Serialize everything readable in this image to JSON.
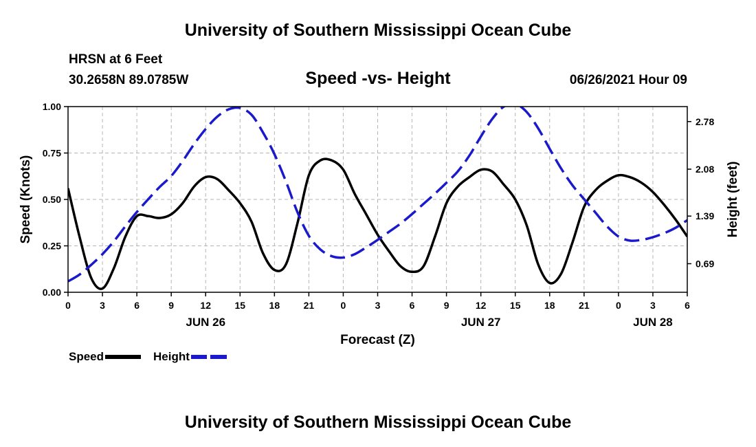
{
  "header": {
    "title": "University of Southern Mississippi Ocean Cube",
    "station": "HRSN at 6 Feet",
    "coords": "30.2658N  89.0785W",
    "chart_title": "Speed -vs- Height",
    "timestamp": "06/26/2021 Hour 09"
  },
  "footer": {
    "title": "University of Southern Mississippi Ocean Cube"
  },
  "legend": {
    "speed_label": "Speed",
    "height_label": "Height"
  },
  "colors": {
    "speed": "#000000",
    "height": "#1a1acc",
    "grid": "#b4b4b4"
  },
  "chart_data": {
    "type": "line",
    "title": "Speed -vs- Height",
    "xlabel": "Forecast (Z)",
    "ylabel": "Speed (Knots)",
    "ylabel_right": "Height (feet)",
    "xlim": [
      0,
      54
    ],
    "ylim": [
      0,
      1
    ],
    "ylim_right": [
      0.27,
      3.0
    ],
    "x_ticks": [
      0,
      3,
      6,
      9,
      12,
      15,
      18,
      21,
      24,
      27,
      30,
      33,
      36,
      39,
      42,
      45,
      48,
      51,
      54
    ],
    "x_tick_labels": [
      "0",
      "3",
      "6",
      "9",
      "12",
      "15",
      "18",
      "21",
      "0",
      "3",
      "6",
      "9",
      "12",
      "15",
      "18",
      "21",
      "0",
      "3",
      "6"
    ],
    "date_labels": [
      {
        "x": 12,
        "label": "JUN 26"
      },
      {
        "x": 36,
        "label": "JUN 27"
      },
      {
        "x": 51,
        "label": "JUN 28"
      }
    ],
    "y_ticks": [
      0,
      0.25,
      0.5,
      0.75,
      1.0
    ],
    "y_tick_labels": [
      "0.00",
      "0.25",
      "0.50",
      "0.75",
      "1.00"
    ],
    "y_right_ticks": [
      0.69,
      1.39,
      2.08,
      2.78
    ],
    "y_right_tick_labels": [
      "0.69",
      "1.39",
      "2.08",
      "2.78"
    ],
    "grid": true,
    "series": [
      {
        "name": "Speed",
        "axis": "left",
        "style": "solid",
        "x": [
          0,
          1,
          2,
          3,
          4,
          5,
          6,
          7,
          8,
          9,
          10,
          11,
          12,
          13,
          14,
          15,
          16,
          17,
          18,
          19,
          20,
          21,
          22,
          23,
          24,
          25,
          26,
          27,
          28,
          29,
          30,
          31,
          32,
          33,
          34,
          35,
          36,
          37,
          38,
          39,
          40,
          41,
          42,
          43,
          44,
          45,
          46,
          47,
          48,
          49,
          50,
          51,
          52,
          53,
          54
        ],
        "values": [
          0.56,
          0.3,
          0.08,
          0.02,
          0.13,
          0.3,
          0.41,
          0.41,
          0.4,
          0.42,
          0.48,
          0.57,
          0.62,
          0.61,
          0.55,
          0.48,
          0.38,
          0.21,
          0.12,
          0.15,
          0.37,
          0.63,
          0.71,
          0.71,
          0.66,
          0.53,
          0.42,
          0.31,
          0.22,
          0.14,
          0.11,
          0.14,
          0.3,
          0.48,
          0.57,
          0.62,
          0.66,
          0.65,
          0.58,
          0.5,
          0.36,
          0.15,
          0.05,
          0.1,
          0.27,
          0.46,
          0.55,
          0.6,
          0.63,
          0.62,
          0.59,
          0.54,
          0.47,
          0.39,
          0.3
        ]
      },
      {
        "name": "Height",
        "axis": "right",
        "style": "dashed",
        "x": [
          0,
          1,
          2,
          3,
          4,
          5,
          6,
          7,
          8,
          9,
          10,
          11,
          12,
          13,
          14,
          15,
          16,
          17,
          18,
          19,
          20,
          21,
          22,
          23,
          24,
          25,
          26,
          27,
          28,
          29,
          30,
          31,
          32,
          33,
          34,
          35,
          36,
          37,
          38,
          39,
          40,
          41,
          42,
          43,
          44,
          45,
          46,
          47,
          48,
          49,
          50,
          51,
          52,
          53,
          54
        ],
        "values": [
          0.43,
          0.53,
          0.67,
          0.83,
          1.02,
          1.24,
          1.45,
          1.64,
          1.82,
          1.98,
          2.2,
          2.45,
          2.67,
          2.85,
          2.96,
          2.98,
          2.88,
          2.62,
          2.3,
          1.9,
          1.45,
          1.1,
          0.9,
          0.8,
          0.78,
          0.83,
          0.93,
          1.04,
          1.16,
          1.28,
          1.42,
          1.57,
          1.72,
          1.88,
          2.05,
          2.28,
          2.56,
          2.82,
          3.0,
          3.04,
          2.92,
          2.68,
          2.38,
          2.09,
          1.84,
          1.64,
          1.44,
          1.24,
          1.09,
          1.03,
          1.04,
          1.08,
          1.14,
          1.22,
          1.33
        ]
      }
    ]
  }
}
